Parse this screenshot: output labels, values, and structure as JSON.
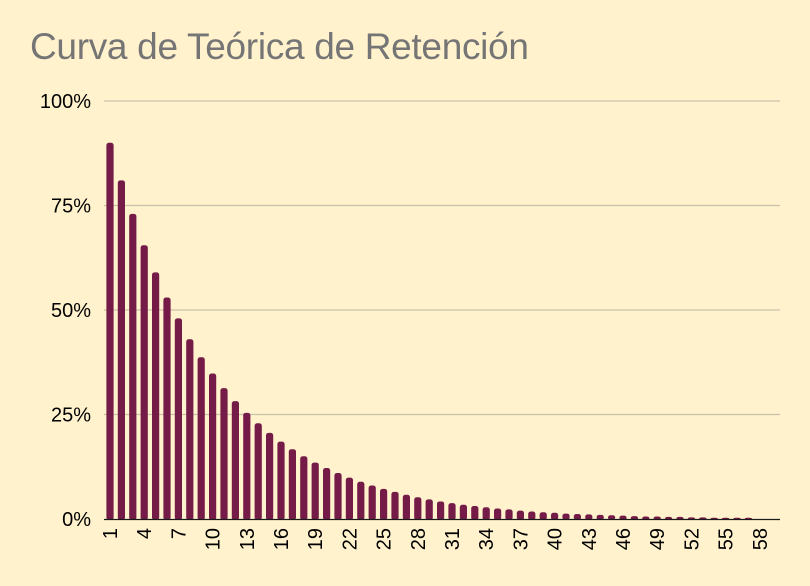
{
  "chart_data": {
    "type": "bar",
    "title": "Curva de Teórica de Retención",
    "xlabel": "",
    "ylabel": "",
    "ylim": [
      0,
      100
    ],
    "y_ticks": [
      "0%",
      "25%",
      "50%",
      "75%",
      "100%"
    ],
    "y_tick_values": [
      0,
      25,
      50,
      75,
      100
    ],
    "x_tick_labels": [
      "1",
      "4",
      "7",
      "10",
      "13",
      "16",
      "19",
      "22",
      "25",
      "28",
      "31",
      "34",
      "37",
      "40",
      "43",
      "46",
      "49",
      "52",
      "55",
      "58"
    ],
    "grid": true,
    "legend": "none",
    "colors": {
      "bar": "#741b47",
      "grid": "#c9c2ab",
      "axis": "#1a1a1a",
      "background": "#fff2cc",
      "title": "#757575"
    },
    "series": [
      {
        "values": [
          90,
          81,
          73,
          65.5,
          59,
          53,
          48,
          43,
          38.7,
          34.8,
          31.3,
          28.2,
          25.4,
          22.9,
          20.6,
          18.5,
          16.7,
          15,
          13.5,
          12.2,
          11,
          9.9,
          8.9,
          8,
          7.2,
          6.5,
          5.8,
          5.2,
          4.7,
          4.2,
          3.8,
          3.4,
          3.1,
          2.8,
          2.5,
          2.3,
          2,
          1.8,
          1.6,
          1.5,
          1.3,
          1.2,
          1.1,
          1,
          0.9,
          0.8,
          0.7,
          0.6,
          0.6,
          0.5,
          0.5,
          0.4,
          0.4,
          0.3,
          0.3,
          0.3,
          0.3
        ]
      }
    ]
  }
}
